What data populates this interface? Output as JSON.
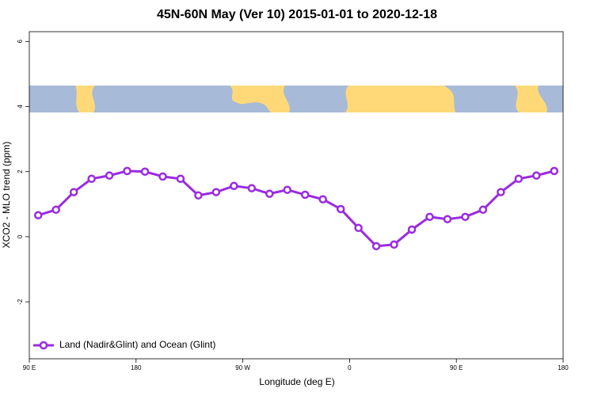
{
  "chart_data": {
    "type": "line",
    "title": "45N-60N May (Ver 10)   2015-01-01 to 2020-12-18",
    "x_label": "Longitude (deg E)",
    "y_label": "XCO2 - MLO trend (ppm)",
    "x": [
      97.5,
      112.5,
      127.5,
      142.5,
      157.5,
      172.5,
      187.5,
      202.5,
      217.5,
      232.5,
      247.5,
      262.5,
      277.5,
      292.5,
      307.5,
      322.5,
      337.5,
      352.5,
      367.5,
      382.5,
      397.5,
      412.5,
      427.5,
      442.5,
      457.5,
      472.5,
      487.5,
      502.5,
      517.5,
      532.5
    ],
    "series": [
      {
        "name": "Land (Nadir&Glint) and Ocean (Glint)",
        "color": "#9a2be2",
        "values": [
          0.66,
          0.83,
          1.37,
          1.78,
          1.88,
          2.02,
          2.0,
          1.85,
          1.78,
          1.27,
          1.37,
          1.56,
          1.49,
          1.32,
          1.44,
          1.29,
          1.15,
          0.85,
          0.27,
          -0.29,
          -0.24,
          0.22,
          0.61,
          0.54,
          0.61,
          0.83,
          1.37,
          1.78,
          1.88,
          2.02
        ]
      }
    ],
    "xlim": [
      90,
      540
    ],
    "xticks": [
      {
        "value": 90,
        "label": "90 E"
      },
      180,
      {
        "value": 270,
        "label": "90 W"
      },
      {
        "value": 360,
        "label": "0"
      },
      {
        "value": 450,
        "label": "90 E"
      },
      {
        "value": 540,
        "label": "180"
      }
    ],
    "ylim": [
      -3.75,
      6.3
    ],
    "yticks": [
      -2,
      0,
      2,
      4,
      6
    ],
    "legend": "bottom-left"
  }
}
